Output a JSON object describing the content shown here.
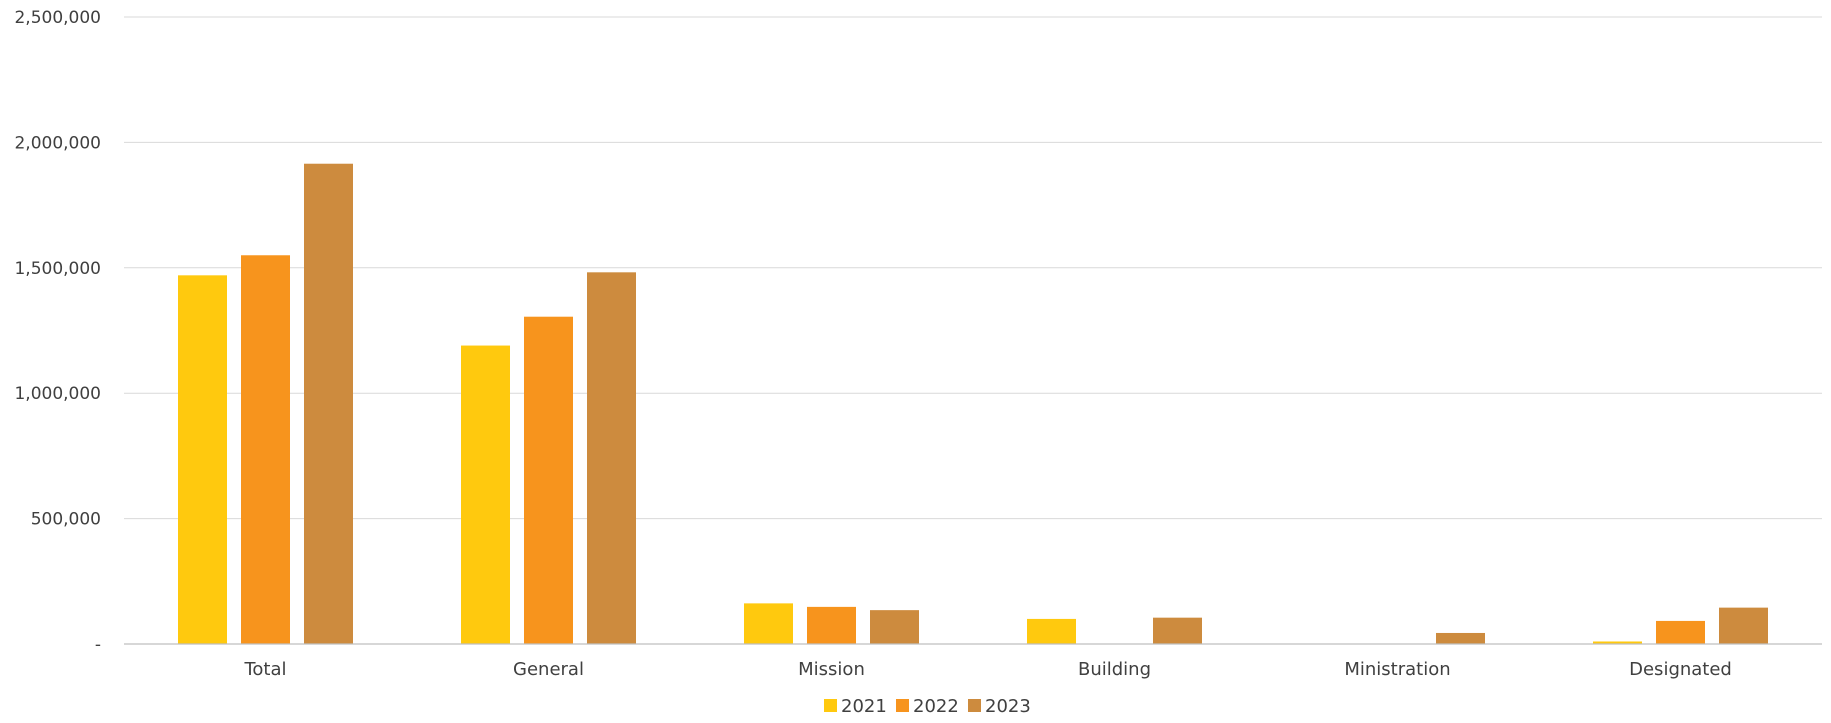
{
  "chart_data": {
    "type": "bar",
    "title": "",
    "xlabel": "",
    "ylabel": "",
    "categories": [
      "Total",
      "General",
      "Mission",
      "Building",
      "Ministration",
      "Designated"
    ],
    "series": [
      {
        "name": "2021",
        "color": "#FFC90E",
        "values": [
          1470000,
          1190000,
          162000,
          100000,
          0,
          10000
        ]
      },
      {
        "name": "2022",
        "color": "#F7941D",
        "values": [
          1550000,
          1305000,
          148000,
          0,
          0,
          92000
        ]
      },
      {
        "name": "2023",
        "color": "#CD8B3E",
        "values": [
          1915000,
          1482000,
          135000,
          105000,
          44000,
          145000
        ]
      }
    ],
    "ylim": [
      0,
      2500000
    ],
    "yticks": [
      0,
      500000,
      1000000,
      1500000,
      2000000,
      2500000
    ],
    "ytick_labels": [
      "-",
      "500,000",
      "1,000,000",
      "1,500,000",
      "2,000,000",
      "2,500,000"
    ],
    "grid": true,
    "legend_position": "bottom"
  }
}
